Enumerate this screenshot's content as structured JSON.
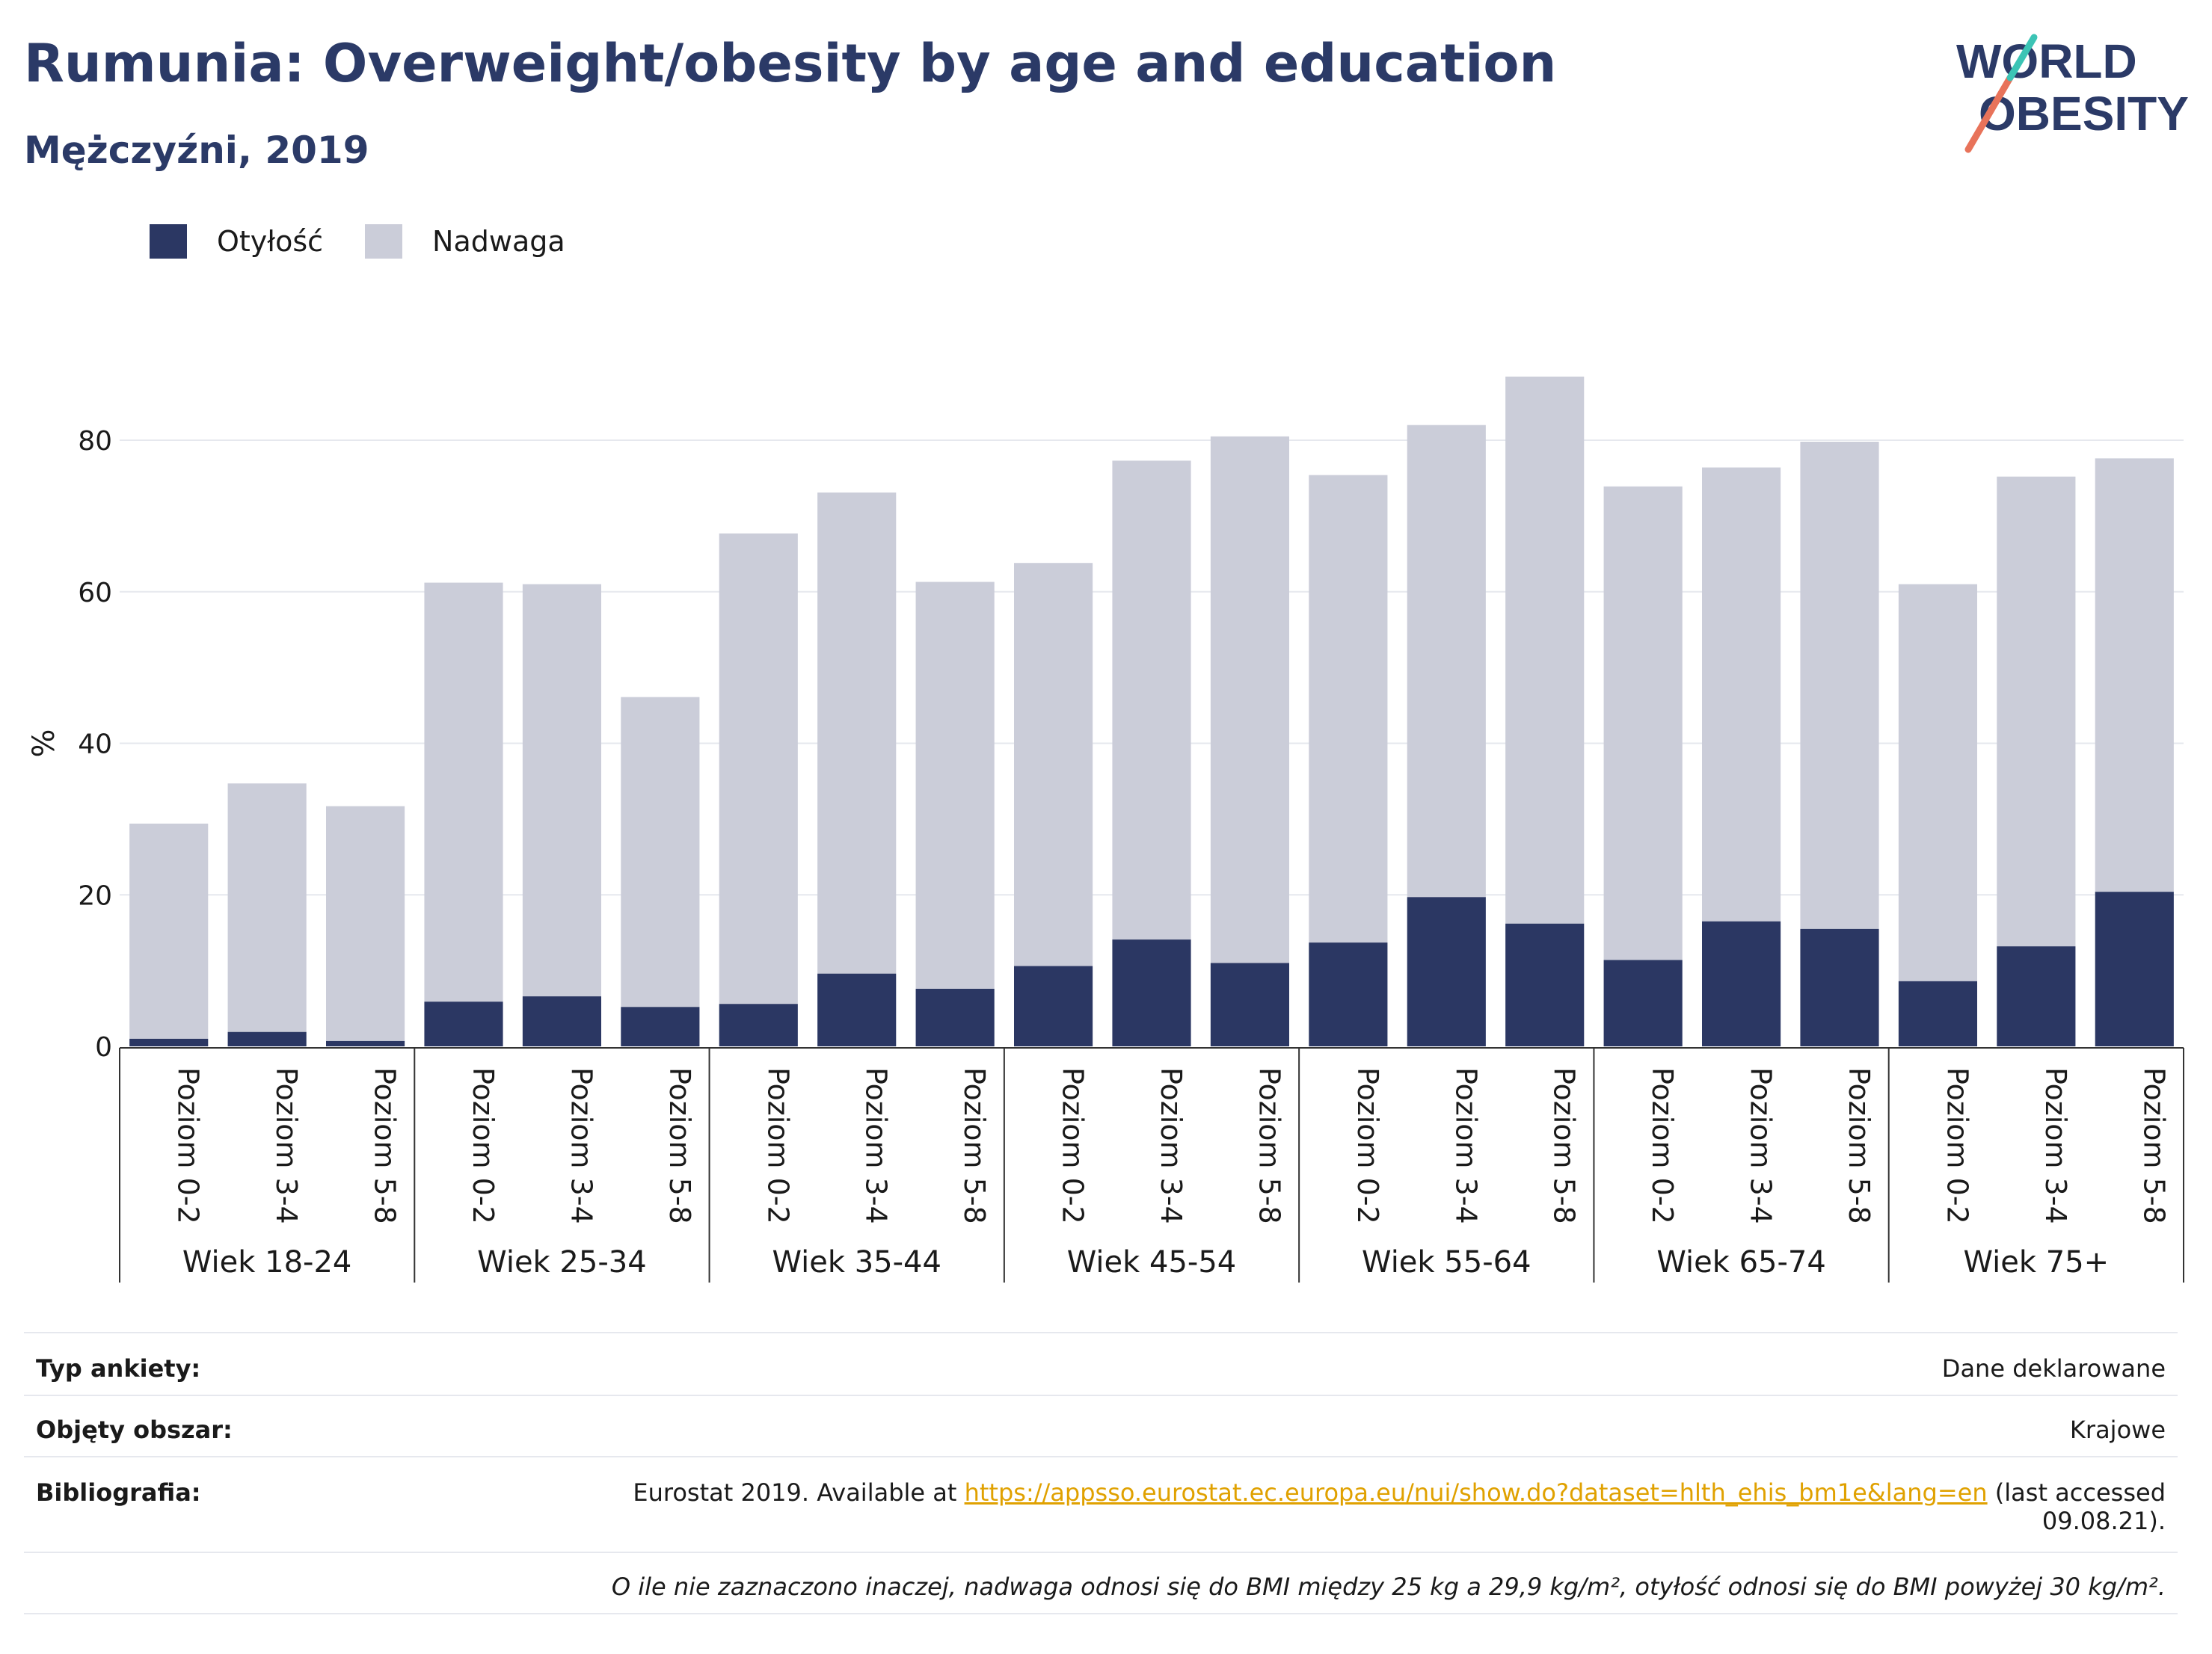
{
  "header": {
    "title": "Rumunia: Overweight/obesity by age and education",
    "subtitle": "Mężczyźni, 2019"
  },
  "logo": {
    "line1": "WORLD",
    "line2": "OBESITY",
    "colors": [
      "#2b3a67",
      "#e8735a",
      "#3cc4b5"
    ]
  },
  "legend": [
    {
      "label": "Otyłość",
      "color": "#2b3763"
    },
    {
      "label": "Nadwaga",
      "color": "#cbcdd9"
    }
  ],
  "chart_data": {
    "type": "bar",
    "stacked": true,
    "ylabel": "%",
    "ylim": [
      0,
      90
    ],
    "yticks": [
      0,
      20,
      40,
      60,
      80
    ],
    "grid": true,
    "legend_position": "top-left",
    "groups": [
      "Wiek 18-24",
      "Wiek 25-34",
      "Wiek 35-44",
      "Wiek 45-54",
      "Wiek 55-64",
      "Wiek 65-74",
      "Wiek 75+"
    ],
    "subcategories": [
      "Poziom 0-2",
      "Poziom 3-4",
      "Poziom 5-8"
    ],
    "series": [
      {
        "name": "Otyłość",
        "color": "#2b3763",
        "values": [
          1.0,
          1.9,
          0.7,
          5.9,
          6.6,
          5.2,
          5.6,
          9.6,
          7.6,
          10.6,
          14.1,
          11.0,
          13.7,
          19.7,
          16.2,
          11.4,
          16.5,
          15.5,
          8.6,
          13.2,
          20.4
        ]
      },
      {
        "name": "Nadwaga",
        "color": "#cbcdd9",
        "values": [
          28.4,
          32.8,
          31.0,
          55.3,
          54.4,
          40.9,
          62.1,
          63.5,
          53.7,
          53.2,
          63.2,
          69.5,
          61.7,
          62.3,
          72.2,
          62.5,
          59.9,
          64.3,
          52.4,
          62.0,
          57.2
        ]
      }
    ]
  },
  "info": {
    "survey_type_label": "Typ ankiety:",
    "survey_type_value": "Dane deklarowane",
    "area_label": "Objęty obszar:",
    "area_value": "Krajowe",
    "bibliography_label": "Bibliografia:",
    "bibliography_prefix": "Eurostat 2019. Available at",
    "bibliography_link": "https://appsso.eurostat.ec.europa.eu/nui/show.do?dataset=hlth_ehis_bm1e&lang=en",
    "bibliography_suffix": "(last accessed",
    "bibliography_date": "09.08.21).",
    "footnote": "O ile nie zaznaczono inaczej, nadwaga odnosi się do BMI między 25 kg a 29,9 kg/m², otyłość odnosi się do BMI powyżej 30 kg/m²."
  }
}
